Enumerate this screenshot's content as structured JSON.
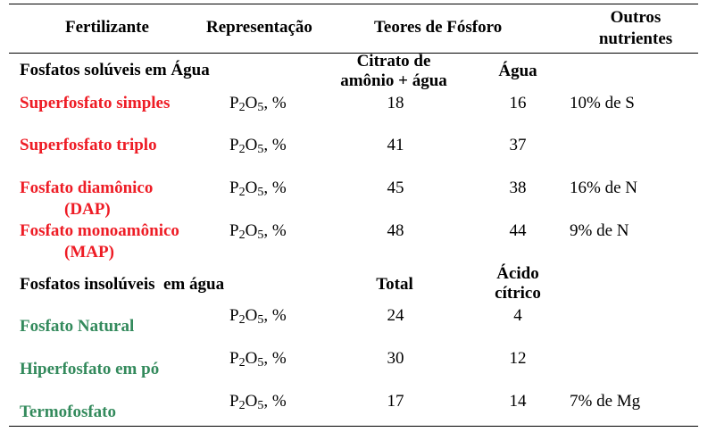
{
  "colors": {
    "soluble": "#ee1c25",
    "insoluble": "#338a5c"
  },
  "header": {
    "fertilizante": "Fertilizante",
    "representacao": "Representação",
    "teores": "Teores de Fósforo",
    "outros_line1": "Outros",
    "outros_line2": "nutrientes"
  },
  "soluble_section": {
    "title": "Fosfatos solúveis em Água",
    "col1_line1": "Citrato de",
    "col1_line2": "amônio + água",
    "col2": "Água"
  },
  "insoluble_section": {
    "title": "Fosfatos insolúveis  em água",
    "col1": "Total",
    "col2_line1": "Ácido",
    "col2_line2": "cítrico"
  },
  "representation": {
    "prefix": "P",
    "sub1": "2",
    "mid": "O",
    "sub2": "5",
    "suffix": ", %"
  },
  "soluble_rows": [
    {
      "name": "Superfosfato simples",
      "name2": "",
      "v1": "18",
      "v2": "16",
      "other": "10% de S"
    },
    {
      "name": "Superfosfato triplo",
      "name2": "",
      "v1": "41",
      "v2": "37",
      "other": ""
    },
    {
      "name": "Fosfato diamônico",
      "name2": "(DAP)",
      "v1": "45",
      "v2": "38",
      "other": "16% de N"
    },
    {
      "name": "Fosfato monoamônico",
      "name2": "(MAP)",
      "v1": "48",
      "v2": "44",
      "other": "9% de N"
    }
  ],
  "insoluble_rows": [
    {
      "name": "Fosfato Natural",
      "v1": "24",
      "v2": "4",
      "other": ""
    },
    {
      "name": "Hiperfosfato em pó",
      "v1": "30",
      "v2": "12",
      "other": ""
    },
    {
      "name": "Termofosfato",
      "v1": "17",
      "v2": "14",
      "other": "7% de Mg"
    }
  ]
}
